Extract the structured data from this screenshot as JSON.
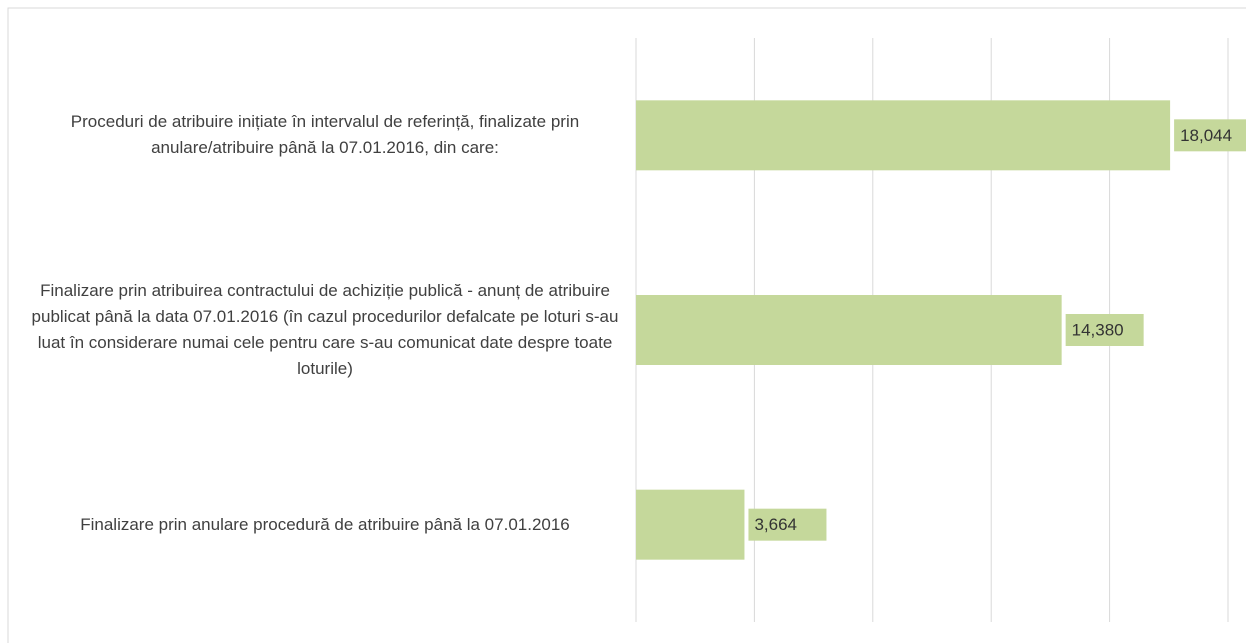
{
  "chart_data": {
    "type": "bar",
    "orientation": "horizontal",
    "categories": [
      "Proceduri de atribuire inițiate în intervalul de referință, finalizate prin anulare/atribuire până la 07.01.2016,  din care:",
      "Finalizare prin atribuirea contractului de achiziție publică - anunț de atribuire publicat până la data 07.01.2016 (în cazul procedurilor defalcate pe loturi s-au luat în considerare numai cele pentru care s-au comunicat date despre toate loturile)",
      "Finalizare prin anulare procedură de atribuire până la 07.01.2016"
    ],
    "values": [
      18044,
      14380,
      3664
    ],
    "value_labels": [
      "18,044",
      "14,380",
      "3,664"
    ],
    "color": "#c5d89b",
    "xlim": [
      0,
      20000
    ],
    "xticks": [
      0,
      4000,
      8000,
      12000,
      16000,
      20000
    ],
    "grid": true
  }
}
